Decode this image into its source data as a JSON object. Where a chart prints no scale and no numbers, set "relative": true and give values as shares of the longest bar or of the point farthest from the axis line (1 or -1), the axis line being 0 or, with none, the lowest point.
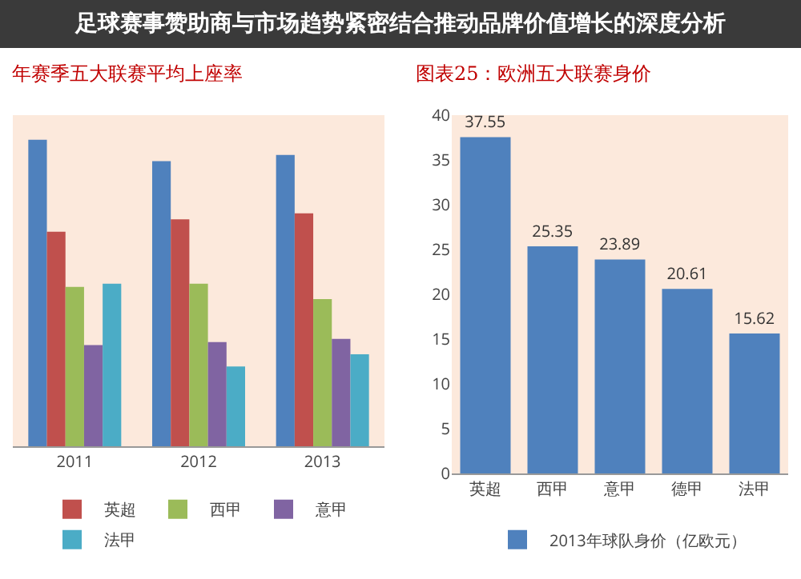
{
  "chart_data": [
    {
      "type": "bar",
      "title": "年赛季五大联赛平均上座率",
      "categories": [
        "2011",
        "2012",
        "2013"
      ],
      "relative": true,
      "legend": "bottom",
      "grid": false,
      "annotations": [
        "足球赛事赞助商与市场趋势紧密结合推动品牌价值增长的深度分析"
      ],
      "series": [
        {
          "color": "#4f81bd",
          "values": [
            1,
            0.93,
            0.95
          ]
        },
        {
          "name": "英超",
          "color": "#c0504d",
          "values": [
            0.7,
            0.74,
            0.76
          ]
        },
        {
          "name": "西甲",
          "color": "#9bbb59",
          "values": [
            0.52,
            0.53,
            0.48
          ]
        },
        {
          "name": "意甲",
          "color": "#8064a2",
          "values": [
            0.33,
            0.34,
            0.35
          ]
        },
        {
          "name": "法甲",
          "color": "#4bacc6",
          "values": [
            0.53,
            0.26,
            0.3
          ]
        }
      ]
    },
    {
      "type": "bar",
      "title": "图表25：欧洲五大联赛身价",
      "categories": [
        "英超",
        "西甲",
        "意甲",
        "德甲",
        "法甲"
      ],
      "ylim": [
        0,
        40
      ],
      "yticks": [
        0,
        5,
        10,
        15,
        20,
        25,
        30,
        35,
        40
      ],
      "legend": "bottom",
      "grid": false,
      "data_labels": true,
      "series": [
        {
          "name": "2013年球队身价（亿欧元）",
          "color": "#4f81bd",
          "values": [
            37.55,
            25.35,
            23.89,
            20.61,
            15.62
          ]
        }
      ]
    }
  ]
}
